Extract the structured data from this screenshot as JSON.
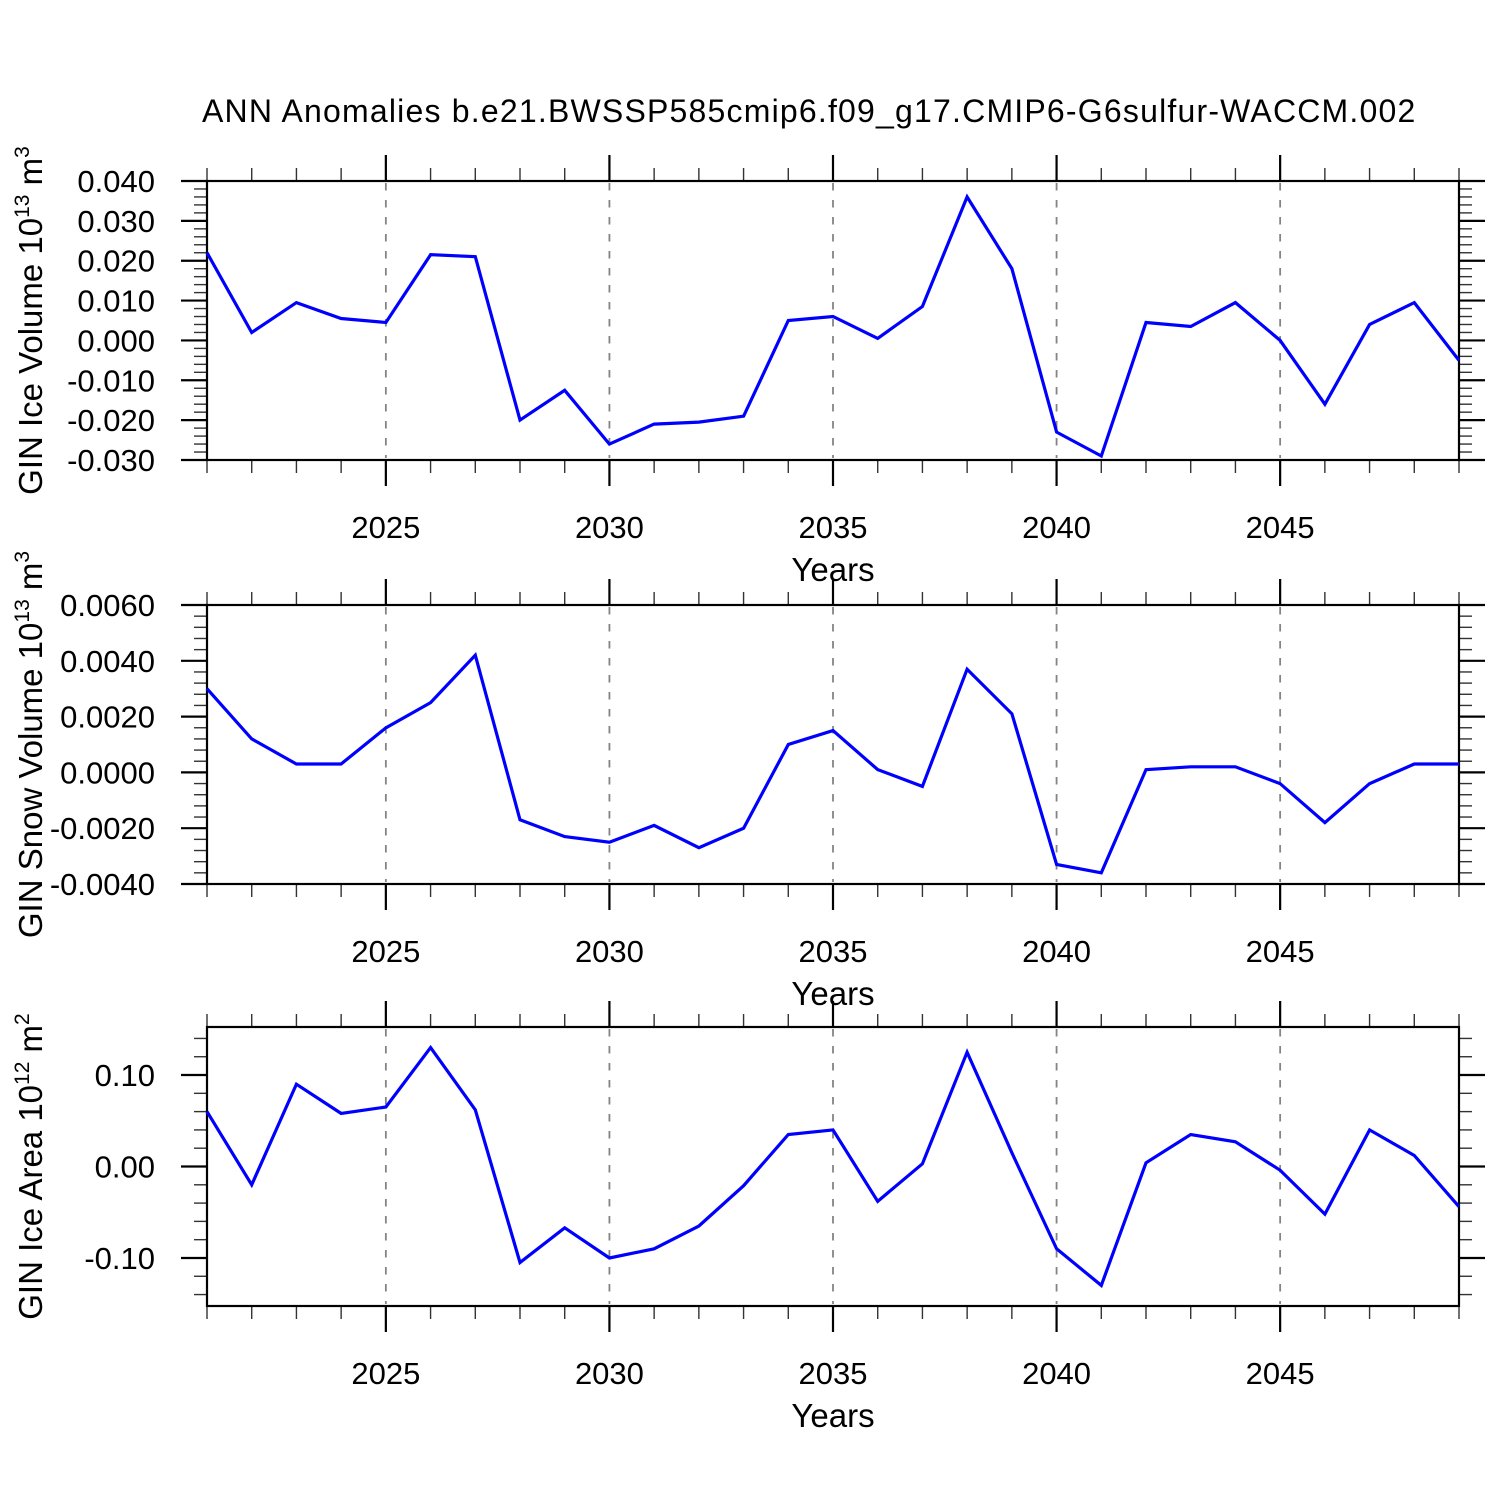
{
  "page": {
    "title": "ANN Anomalies b.e21.BWSSP585cmip6.f09_g17.CMIP6-G6sulfur-WACCM.002"
  },
  "style": {
    "line_color": "#0000ff",
    "axis_color": "#000000",
    "minor_tick_color": "#333333",
    "grid_color": "#848484",
    "background": "#ffffff"
  },
  "x_axis": {
    "label": "Years",
    "range": [
      2021,
      2049
    ],
    "major_ticks": [
      2025,
      2030,
      2035,
      2040,
      2045
    ],
    "major_tick_labels": [
      "2025",
      "2030",
      "2035",
      "2040",
      "2045"
    ],
    "minor_tick_step": 1
  },
  "chart_data": [
    {
      "type": "line",
      "name": "gin-ice-volume",
      "ylabel": "GIN Ice Volume 10^13 m^3",
      "ylabel_parts": [
        {
          "t": "GIN Ice Volume 10"
        },
        {
          "t": "13",
          "sup": true
        },
        {
          "t": " m"
        },
        {
          "t": "3",
          "sup": true
        }
      ],
      "xlabel": "Years",
      "ylim": [
        -0.03,
        0.04
      ],
      "ytick_values": [
        0.04,
        0.03,
        0.02,
        0.01,
        0.0,
        -0.01,
        -0.02,
        -0.03
      ],
      "ytick_labels": [
        "0.040",
        "0.030",
        "0.020",
        "0.010",
        "0.000",
        "-0.010",
        "-0.020",
        "-0.030"
      ],
      "ytick_minor_step": 0.002,
      "x": [
        2021,
        2022,
        2023,
        2024,
        2025,
        2026,
        2027,
        2028,
        2029,
        2030,
        2031,
        2032,
        2033,
        2034,
        2035,
        2036,
        2037,
        2038,
        2039,
        2040,
        2041,
        2042,
        2043,
        2044,
        2045,
        2046,
        2047,
        2048,
        2049
      ],
      "values": [
        0.022,
        0.002,
        0.0095,
        0.0055,
        0.0045,
        0.0215,
        0.021,
        -0.02,
        -0.0125,
        -0.026,
        -0.021,
        -0.0205,
        -0.019,
        0.005,
        0.006,
        0.0005,
        0.0085,
        0.036,
        0.018,
        -0.023,
        -0.029,
        0.0045,
        0.0035,
        0.0095,
        0.0,
        -0.016,
        0.004,
        0.0095,
        -0.005
      ]
    },
    {
      "type": "line",
      "name": "gin-snow-volume",
      "ylabel": "GIN Snow Volume 10^13 m^3",
      "ylabel_parts": [
        {
          "t": "GIN Snow Volume 10"
        },
        {
          "t": "13",
          "sup": true
        },
        {
          "t": " m"
        },
        {
          "t": "3",
          "sup": true
        }
      ],
      "xlabel": "Years",
      "ylim": [
        -0.004,
        0.006
      ],
      "ytick_values": [
        0.006,
        0.004,
        0.002,
        0.0,
        -0.002,
        -0.004
      ],
      "ytick_labels": [
        "0.0060",
        "0.0040",
        "0.0020",
        "0.0000",
        "-0.0020",
        "-0.0040"
      ],
      "ytick_minor_step": 0.0004,
      "x": [
        2021,
        2022,
        2023,
        2024,
        2025,
        2026,
        2027,
        2028,
        2029,
        2030,
        2031,
        2032,
        2033,
        2034,
        2035,
        2036,
        2037,
        2038,
        2039,
        2040,
        2041,
        2042,
        2043,
        2044,
        2045,
        2046,
        2047,
        2048,
        2049
      ],
      "values": [
        0.003,
        0.0012,
        0.0003,
        0.0003,
        0.0016,
        0.0025,
        0.0042,
        -0.0017,
        -0.0023,
        -0.0025,
        -0.0019,
        -0.0027,
        -0.002,
        0.001,
        0.0015,
        0.0001,
        -0.0005,
        0.0037,
        0.0021,
        -0.0033,
        -0.0036,
        0.0001,
        0.0002,
        0.0002,
        -0.0004,
        -0.0018,
        -0.0004,
        0.0003,
        0.0003
      ]
    },
    {
      "type": "line",
      "name": "gin-ice-area",
      "ylabel": "GIN Ice Area 10^12 m^2",
      "ylabel_parts": [
        {
          "t": "GIN Ice Area 10"
        },
        {
          "t": "12",
          "sup": true
        },
        {
          "t": " m"
        },
        {
          "t": "2",
          "sup": true
        }
      ],
      "xlabel": "Years",
      "ylim": [
        -0.1525,
        0.1525
      ],
      "ytick_values": [
        0.1,
        0.0,
        -0.1
      ],
      "ytick_labels": [
        "0.10",
        "0.00",
        "-0.10"
      ],
      "ytick_minor_step": 0.02,
      "x": [
        2021,
        2022,
        2023,
        2024,
        2025,
        2026,
        2027,
        2028,
        2029,
        2030,
        2031,
        2032,
        2033,
        2034,
        2035,
        2036,
        2037,
        2038,
        2039,
        2040,
        2041,
        2042,
        2043,
        2044,
        2045,
        2046,
        2047,
        2048,
        2049
      ],
      "values": [
        0.06,
        -0.02,
        0.09,
        0.058,
        0.065,
        0.13,
        0.062,
        -0.105,
        -0.067,
        -0.1,
        -0.09,
        -0.065,
        -0.021,
        0.035,
        0.04,
        -0.038,
        0.003,
        0.125,
        0.015,
        -0.09,
        -0.13,
        0.004,
        0.035,
        0.027,
        -0.004,
        -0.052,
        0.04,
        0.012,
        -0.044
      ]
    }
  ]
}
